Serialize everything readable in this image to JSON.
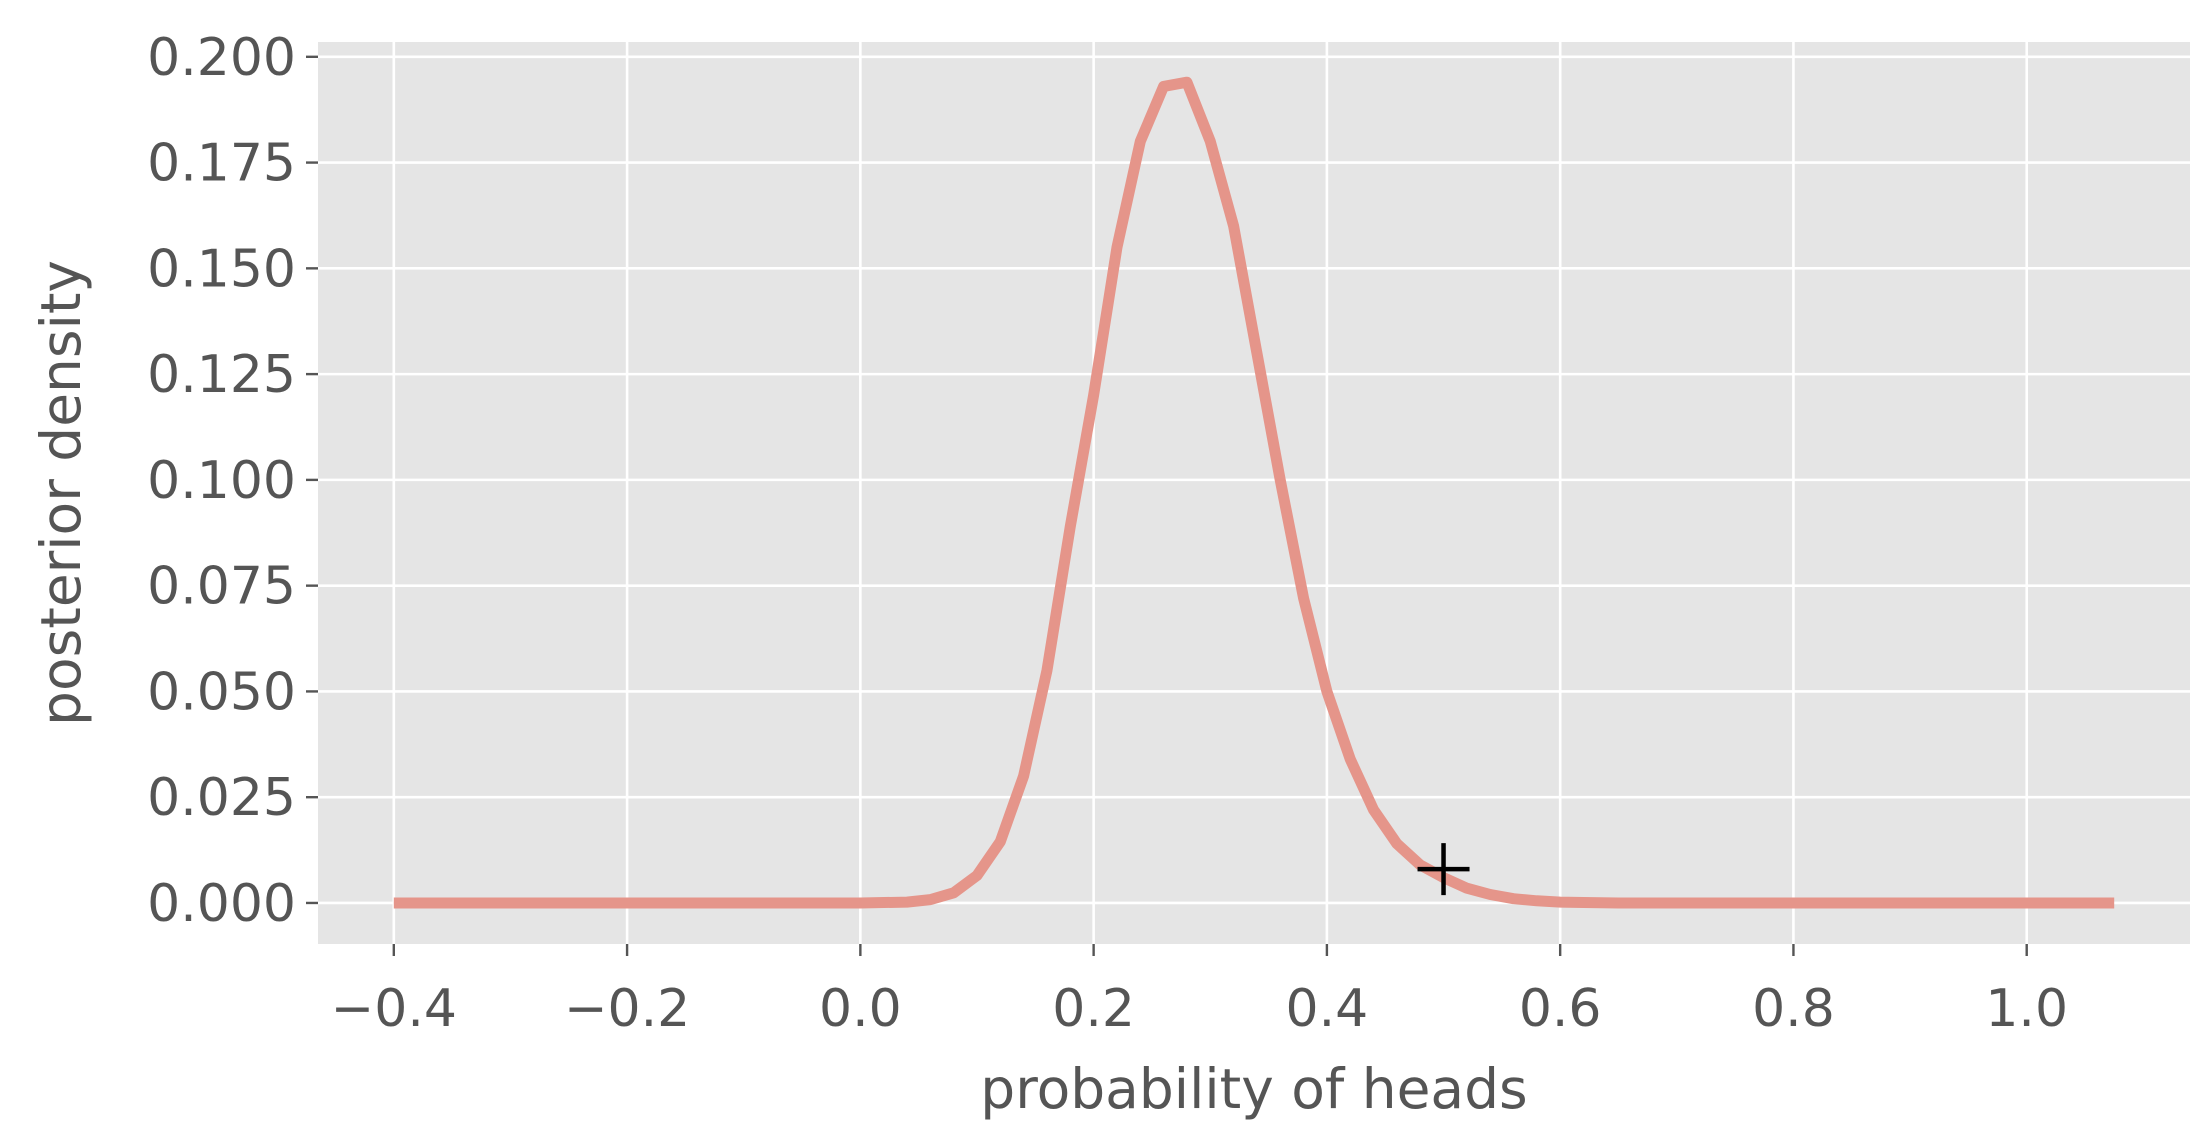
{
  "chart_data": {
    "type": "line",
    "title": "",
    "xlabel": "probability of heads",
    "ylabel": "posterior density",
    "xlim": [
      -0.465,
      1.14
    ],
    "ylim": [
      -0.0097,
      0.2035
    ],
    "grid": true,
    "legend": "none",
    "x_ticks": [
      {
        "value": -0.4,
        "label": "−0.4"
      },
      {
        "value": -0.2,
        "label": "−0.2"
      },
      {
        "value": 0.0,
        "label": "0.0"
      },
      {
        "value": 0.2,
        "label": "0.2"
      },
      {
        "value": 0.4,
        "label": "0.4"
      },
      {
        "value": 0.6,
        "label": "0.6"
      },
      {
        "value": 0.8,
        "label": "0.8"
      },
      {
        "value": 1.0,
        "label": "1.0"
      }
    ],
    "y_ticks": [
      {
        "value": 0.0,
        "label": "0.000"
      },
      {
        "value": 0.025,
        "label": "0.025"
      },
      {
        "value": 0.05,
        "label": "0.050"
      },
      {
        "value": 0.075,
        "label": "0.075"
      },
      {
        "value": 0.1,
        "label": "0.100"
      },
      {
        "value": 0.125,
        "label": "0.125"
      },
      {
        "value": 0.15,
        "label": "0.150"
      },
      {
        "value": 0.175,
        "label": "0.175"
      },
      {
        "value": 0.2,
        "label": "0.200"
      }
    ],
    "series": [
      {
        "color": "#e5958a",
        "x": [
          -0.4,
          0.0,
          0.04,
          0.06,
          0.08,
          0.1,
          0.12,
          0.14,
          0.16,
          0.18,
          0.2,
          0.22,
          0.24,
          0.26,
          0.28,
          0.3,
          0.32,
          0.34,
          0.36,
          0.38,
          0.4,
          0.42,
          0.44,
          0.46,
          0.48,
          0.5,
          0.52,
          0.54,
          0.56,
          0.58,
          0.6,
          0.62,
          0.65,
          1.075
        ],
        "y": [
          0.0,
          0.0,
          0.0002,
          0.0008,
          0.0024,
          0.0065,
          0.0145,
          0.03,
          0.055,
          0.089,
          0.12,
          0.155,
          0.18,
          0.193,
          0.194,
          0.18,
          0.16,
          0.13,
          0.1,
          0.072,
          0.05,
          0.034,
          0.022,
          0.014,
          0.009,
          0.006,
          0.0035,
          0.002,
          0.001,
          0.0005,
          0.0002,
          0.0001,
          0.0,
          0.0
        ]
      }
    ],
    "markers": [
      {
        "x": 0.5,
        "y": 0.008,
        "symbol": "+",
        "color": "#000000"
      }
    ]
  }
}
